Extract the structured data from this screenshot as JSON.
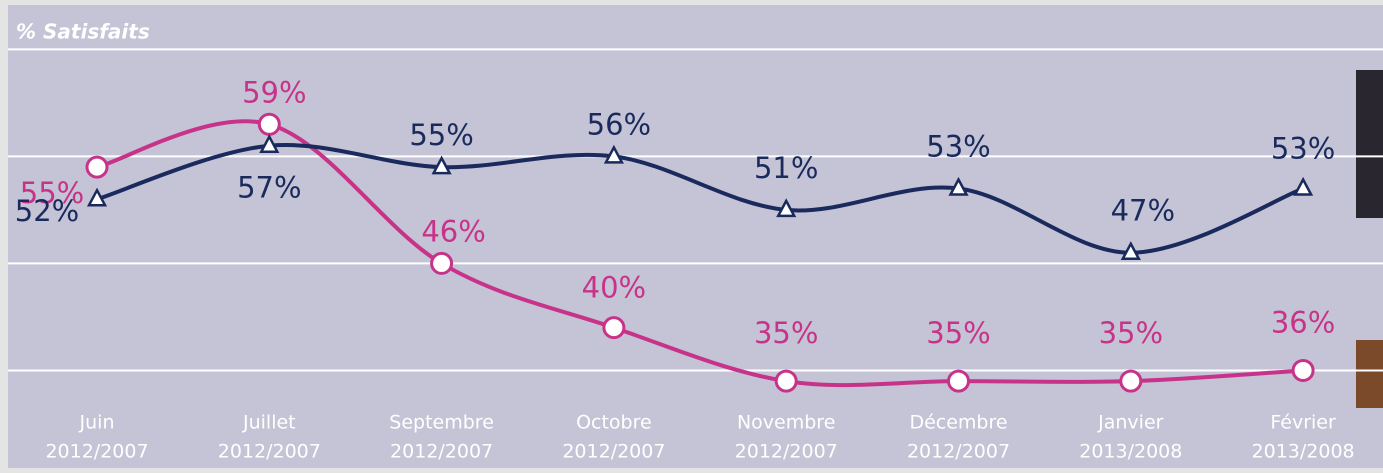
{
  "chart_data": {
    "type": "line",
    "title": "% Satisfaits",
    "categories": [
      [
        "Juin",
        "2012/2007"
      ],
      [
        "Juillet",
        "2012/2007"
      ],
      [
        "Septembre",
        "2012/2007"
      ],
      [
        "Octobre",
        "2012/2007"
      ],
      [
        "Novembre",
        "2012/2007"
      ],
      [
        "Décembre",
        "2012/2007"
      ],
      [
        "Janvier",
        "2013/2008"
      ],
      [
        "Février",
        "2013/2008"
      ]
    ],
    "series": [
      {
        "color": "#c8338a",
        "marker": "circle",
        "values": [
          55,
          59,
          46,
          40,
          35,
          35,
          35,
          36
        ],
        "value_labels": [
          "55%",
          "59%",
          "46%",
          "40%",
          "35%",
          "35%",
          "35%",
          "36%"
        ]
      },
      {
        "color": "#1b2a5c",
        "marker": "triangle",
        "values": [
          52,
          57,
          55,
          56,
          51,
          53,
          47,
          53
        ],
        "value_labels": [
          "52%",
          "57%",
          "55%",
          "56%",
          "51%",
          "53%",
          "47%",
          "53%"
        ]
      }
    ],
    "ylim": [
      29.5,
      68
    ],
    "yticks": [
      36,
      46,
      56,
      66
    ],
    "grid": true
  }
}
